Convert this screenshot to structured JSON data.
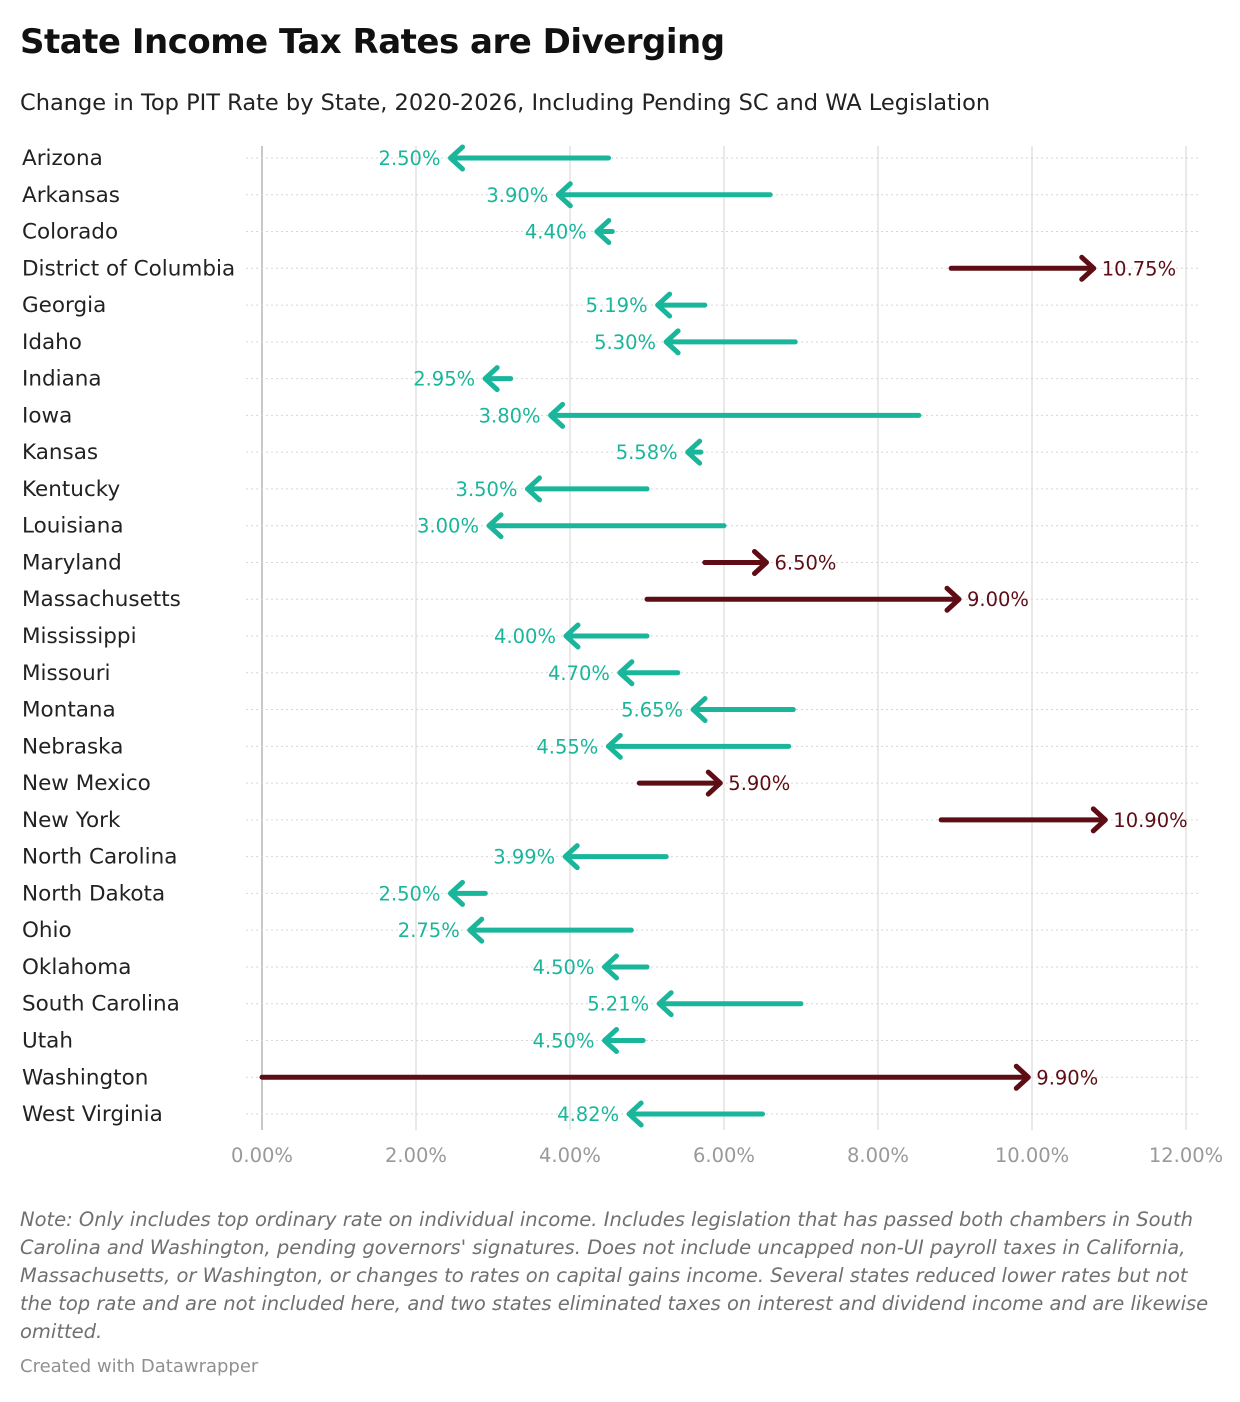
{
  "colors": {
    "decrease": "#1ab69b",
    "increase": "#5e0d15",
    "grid": "#e2e2e2",
    "axis": "#999999"
  },
  "chart_data": {
    "type": "arrow",
    "title": "State Income Tax Rates are Diverging",
    "subtitle": "Change in Top PIT Rate by State, 2020-2026, Including Pending SC and WA Legislation",
    "xlim": [
      0,
      12
    ],
    "x_ticks": [
      0,
      2,
      4,
      6,
      8,
      10,
      12
    ],
    "x_tick_labels": [
      "0.00%",
      "2.00%",
      "4.00%",
      "6.00%",
      "8.00%",
      "10.00%",
      "12.00%"
    ],
    "series": [
      {
        "state": "Arizona",
        "from": 4.5,
        "to": 2.5,
        "label": "2.50%"
      },
      {
        "state": "Arkansas",
        "from": 6.6,
        "to": 3.9,
        "label": "3.90%"
      },
      {
        "state": "Colorado",
        "from": 4.55,
        "to": 4.4,
        "label": "4.40%"
      },
      {
        "state": "District of Columbia",
        "from": 8.95,
        "to": 10.75,
        "label": "10.75%"
      },
      {
        "state": "Georgia",
        "from": 5.75,
        "to": 5.19,
        "label": "5.19%"
      },
      {
        "state": "Idaho",
        "from": 6.925,
        "to": 5.3,
        "label": "5.30%"
      },
      {
        "state": "Indiana",
        "from": 3.23,
        "to": 2.95,
        "label": "2.95%"
      },
      {
        "state": "Iowa",
        "from": 8.53,
        "to": 3.8,
        "label": "3.80%"
      },
      {
        "state": "Kansas",
        "from": 5.7,
        "to": 5.58,
        "label": "5.58%"
      },
      {
        "state": "Kentucky",
        "from": 5.0,
        "to": 3.5,
        "label": "3.50%"
      },
      {
        "state": "Louisiana",
        "from": 6.0,
        "to": 3.0,
        "label": "3.00%"
      },
      {
        "state": "Maryland",
        "from": 5.75,
        "to": 6.5,
        "label": "6.50%"
      },
      {
        "state": "Massachusetts",
        "from": 5.0,
        "to": 9.0,
        "label": "9.00%"
      },
      {
        "state": "Mississippi",
        "from": 5.0,
        "to": 4.0,
        "label": "4.00%"
      },
      {
        "state": "Missouri",
        "from": 5.4,
        "to": 4.7,
        "label": "4.70%"
      },
      {
        "state": "Montana",
        "from": 6.9,
        "to": 5.65,
        "label": "5.65%"
      },
      {
        "state": "Nebraska",
        "from": 6.84,
        "to": 4.55,
        "label": "4.55%"
      },
      {
        "state": "New Mexico",
        "from": 4.9,
        "to": 5.9,
        "label": "5.90%"
      },
      {
        "state": "New York",
        "from": 8.82,
        "to": 10.9,
        "label": "10.90%"
      },
      {
        "state": "North Carolina",
        "from": 5.25,
        "to": 3.99,
        "label": "3.99%"
      },
      {
        "state": "North Dakota",
        "from": 2.9,
        "to": 2.5,
        "label": "2.50%"
      },
      {
        "state": "Ohio",
        "from": 4.797,
        "to": 2.75,
        "label": "2.75%"
      },
      {
        "state": "Oklahoma",
        "from": 5.0,
        "to": 4.5,
        "label": "4.50%"
      },
      {
        "state": "South Carolina",
        "from": 7.0,
        "to": 5.21,
        "label": "5.21%"
      },
      {
        "state": "Utah",
        "from": 4.95,
        "to": 4.5,
        "label": "4.50%"
      },
      {
        "state": "Washington",
        "from": 0.0,
        "to": 9.9,
        "label": "9.90%"
      },
      {
        "state": "West Virginia",
        "from": 6.5,
        "to": 4.82,
        "label": "4.82%"
      }
    ]
  },
  "note": "Note: Only includes top ordinary rate on individual income. Includes legislation that has passed both chambers in South Carolina and Washington, pending governors' signatures. Does not include uncapped non-UI payroll taxes in California, Massachusetts, or Washington, or changes to rates on capital gains income. Several states reduced lower rates but not the top rate and are not included here, and two states eliminated taxes on interest and dividend income and are likewise omitted.",
  "credit": "Created with Datawrapper"
}
